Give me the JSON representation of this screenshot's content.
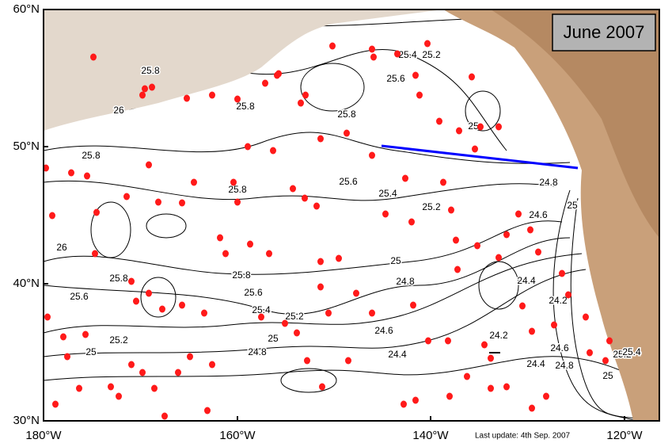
{
  "map": {
    "title": "June 2007",
    "footer": "Last update: 4th Sep. 2007",
    "lat_labels": [
      "60°N",
      "50°N",
      "40°N",
      "30°N"
    ],
    "lon_labels": [
      "180°W",
      "160°W",
      "140°W",
      "120°W"
    ],
    "contour_labels": [
      "25.8",
      "25.4",
      "25.2",
      "25.6",
      "26",
      "25.8",
      "25.8",
      "25",
      "25.8",
      "25.8",
      "25.6",
      "25.4",
      "25.2",
      "24.8",
      "24.6",
      "25",
      "26",
      "25.8",
      "25.8",
      "25.6",
      "25.4",
      "25.2",
      "24.8",
      "25",
      "25.6",
      "25.2",
      "25",
      "25",
      "24.8",
      "24.6",
      "24.4",
      "24.2",
      "24.4",
      "24.2",
      "24.4",
      "24.6",
      "24.8",
      "25",
      "25.2",
      "25.4"
    ]
  }
}
